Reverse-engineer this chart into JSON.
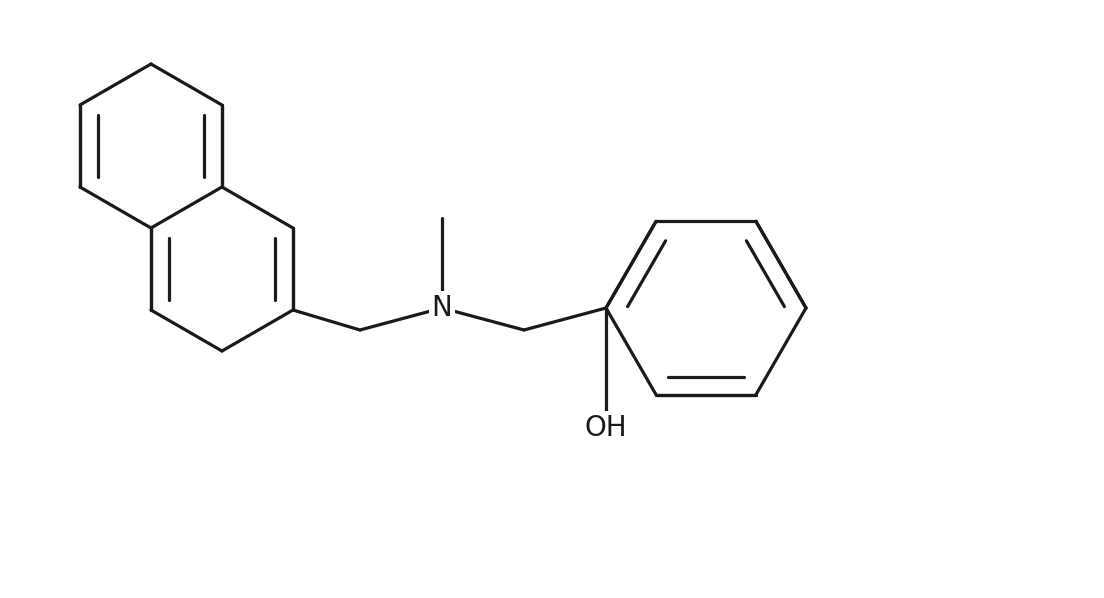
{
  "background_color": "#ffffff",
  "line_color": "#1a1a1a",
  "line_width": 2.3,
  "figsize": [
    11.04,
    5.98
  ],
  "dpi": 100,
  "N_label_fontsize": 20,
  "OH_label_fontsize": 20
}
